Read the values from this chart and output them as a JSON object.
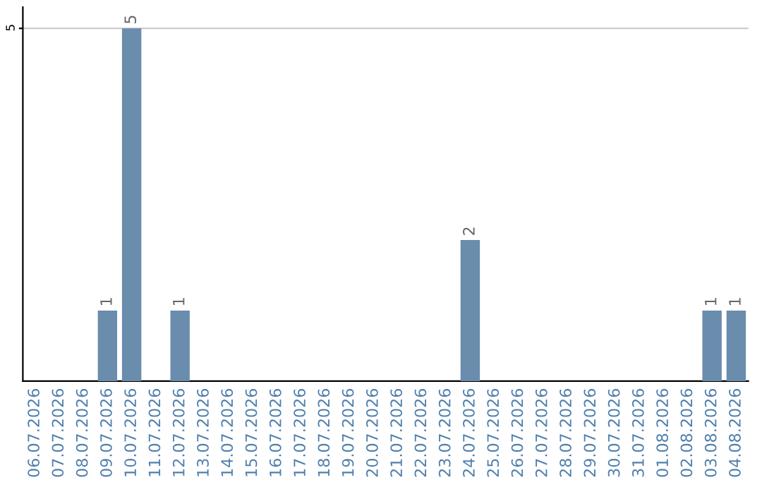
{
  "chart_data": {
    "type": "bar",
    "categories": [
      "06.07.2026",
      "07.07.2026",
      "08.07.2026",
      "09.07.2026",
      "10.07.2026",
      "11.07.2026",
      "12.07.2026",
      "13.07.2026",
      "14.07.2026",
      "15.07.2026",
      "16.07.2026",
      "17.07.2026",
      "18.07.2026",
      "19.07.2026",
      "20.07.2026",
      "21.07.2026",
      "22.07.2026",
      "23.07.2026",
      "24.07.2026",
      "25.07.2026",
      "26.07.2026",
      "27.07.2026",
      "28.07.2026",
      "29.07.2026",
      "30.07.2026",
      "31.07.2026",
      "01.08.2026",
      "02.08.2026",
      "03.08.2026",
      "04.08.2026"
    ],
    "values": [
      0,
      0,
      0,
      1,
      5,
      0,
      1,
      0,
      0,
      0,
      0,
      0,
      0,
      0,
      0,
      0,
      0,
      0,
      2,
      0,
      0,
      0,
      0,
      0,
      0,
      0,
      0,
      0,
      1,
      1
    ],
    "value_labels": [
      null,
      null,
      null,
      "1",
      "5",
      null,
      "1",
      null,
      null,
      null,
      null,
      null,
      null,
      null,
      null,
      null,
      null,
      null,
      "2",
      null,
      null,
      null,
      null,
      null,
      null,
      null,
      null,
      null,
      "1",
      "1"
    ],
    "color": "#6a8cad",
    "ylim": [
      0,
      5.3
    ],
    "yticks": [
      5
    ],
    "grid": "y"
  }
}
